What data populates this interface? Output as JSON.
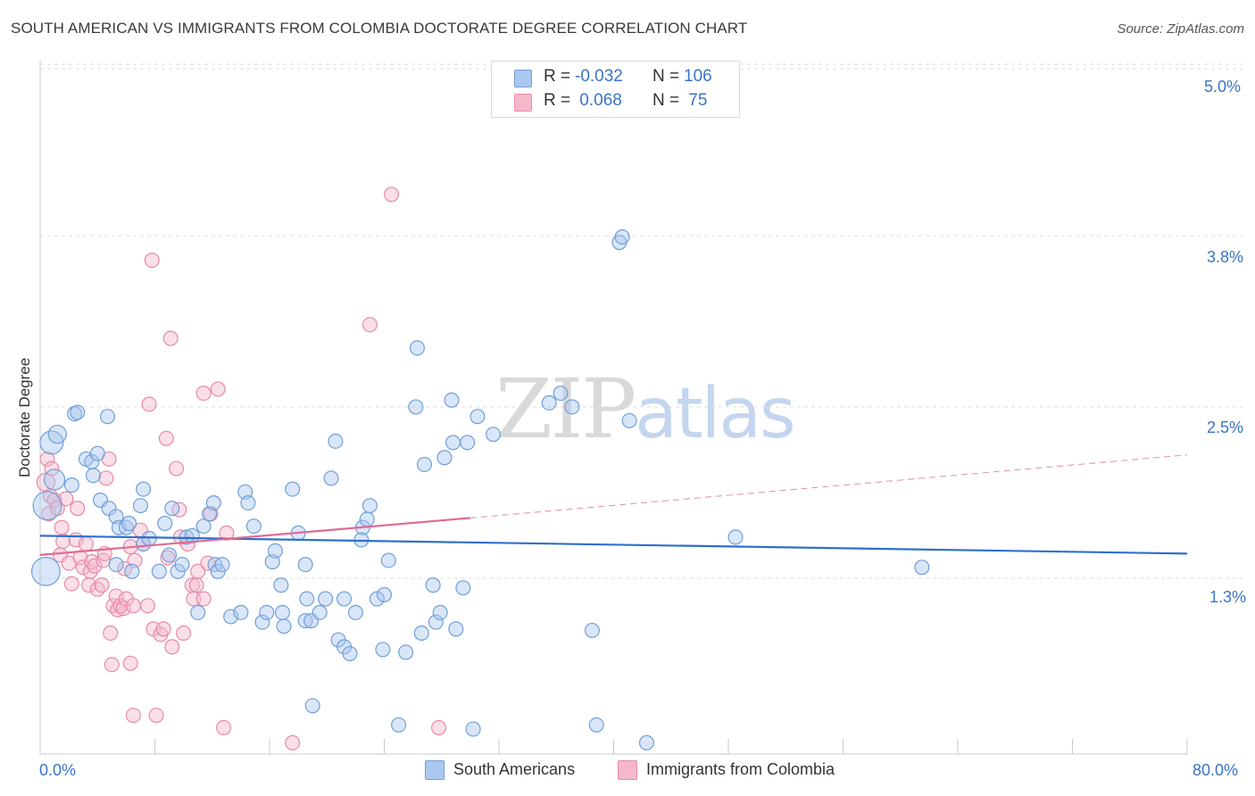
{
  "title": "SOUTH AMERICAN VS IMMIGRANTS FROM COLOMBIA DOCTORATE DEGREE CORRELATION CHART",
  "source": "Source: ZipAtlas.com",
  "watermark": "ZIPatlas",
  "legend_top": {
    "rows": [
      {
        "r_label": "R =",
        "r_value": "-0.032",
        "n_label": "N =",
        "n_value": "106",
        "color": "#aac8f0"
      },
      {
        "r_label": "R =",
        "r_value": " 0.068",
        "n_label": "N =",
        "n_value": " 75",
        "color": "#f5b8cb"
      }
    ]
  },
  "colors": {
    "blue_fill": "#aac8f0",
    "blue_stroke": "#6f9fd8",
    "blue_line": "#2f6fcc",
    "pink_fill": "#f5b8cb",
    "pink_stroke": "#e88aa8",
    "pink_line": "#e06a93",
    "grid": "#dcdcdc",
    "axis_text": "#3a73c6"
  },
  "chart_data": {
    "type": "scatter",
    "title": "SOUTH AMERICAN VS IMMIGRANTS FROM COLOMBIA DOCTORATE DEGREE CORRELATION CHART",
    "xlabel": "",
    "ylabel": "Doctorate Degree",
    "xlim": [
      0,
      80
    ],
    "ylim": [
      0,
      5.0
    ],
    "x_tick_labels": [
      "0.0%",
      "80.0%"
    ],
    "y_tick_labels": [
      "1.3%",
      "2.5%",
      "3.8%",
      "5.0%"
    ],
    "y_ticks": [
      1.25,
      2.5,
      3.75,
      5.0
    ],
    "grid": true,
    "legend_placement": "bottom",
    "series": [
      {
        "name": "South Americans",
        "r": -0.032,
        "n": 106,
        "trend": {
          "x": [
            0,
            80
          ],
          "y": [
            1.56,
            1.43
          ]
        },
        "points": [
          [
            0.4,
            1.3,
            22
          ],
          [
            0.8,
            2.24,
            18
          ],
          [
            1.2,
            2.3,
            14
          ],
          [
            1.0,
            1.97,
            16
          ],
          [
            0.5,
            1.78,
            22
          ],
          [
            2.2,
            1.93,
            11
          ],
          [
            2.4,
            2.45,
            11
          ],
          [
            2.6,
            2.46,
            11
          ],
          [
            3.2,
            2.12,
            11
          ],
          [
            3.6,
            2.1,
            11
          ],
          [
            4.0,
            2.16,
            11
          ],
          [
            3.7,
            2.0,
            11
          ],
          [
            4.7,
            2.43,
            11
          ],
          [
            4.2,
            1.82,
            11
          ],
          [
            4.8,
            1.76,
            11
          ],
          [
            5.3,
            1.7,
            11
          ],
          [
            5.5,
            1.62,
            11
          ],
          [
            6.0,
            1.62,
            11
          ],
          [
            5.3,
            1.35,
            11
          ],
          [
            6.4,
            1.3,
            11
          ],
          [
            6.2,
            1.65,
            11
          ],
          [
            7.2,
            1.5,
            11
          ],
          [
            7.2,
            1.9,
            11
          ],
          [
            7.0,
            1.78,
            11
          ],
          [
            7.6,
            1.54,
            11
          ],
          [
            8.3,
            1.3,
            11
          ],
          [
            8.7,
            1.65,
            11
          ],
          [
            9.0,
            1.42,
            11
          ],
          [
            9.2,
            1.76,
            11
          ],
          [
            9.6,
            1.3,
            11
          ],
          [
            9.9,
            1.35,
            11
          ],
          [
            10.2,
            1.55,
            11
          ],
          [
            10.6,
            1.56,
            11
          ],
          [
            11.0,
            1.0,
            11
          ],
          [
            11.4,
            1.63,
            11
          ],
          [
            11.8,
            1.72,
            11
          ],
          [
            12.1,
            1.8,
            11
          ],
          [
            12.2,
            1.35,
            11
          ],
          [
            12.4,
            1.3,
            11
          ],
          [
            12.7,
            1.35,
            11
          ],
          [
            13.3,
            0.97,
            11
          ],
          [
            14.0,
            1.0,
            11
          ],
          [
            14.3,
            1.88,
            11
          ],
          [
            14.5,
            1.8,
            11
          ],
          [
            14.9,
            1.63,
            11
          ],
          [
            15.5,
            0.93,
            11
          ],
          [
            15.8,
            1.0,
            11
          ],
          [
            16.2,
            1.37,
            11
          ],
          [
            16.4,
            1.45,
            11
          ],
          [
            16.8,
            1.2,
            11
          ],
          [
            16.9,
            1.0,
            11
          ],
          [
            17.0,
            0.9,
            11
          ],
          [
            17.6,
            1.9,
            11
          ],
          [
            18.0,
            1.58,
            11
          ],
          [
            18.5,
            0.94,
            11
          ],
          [
            18.6,
            1.1,
            11
          ],
          [
            18.5,
            1.35,
            11
          ],
          [
            18.9,
            0.94,
            11
          ],
          [
            19.0,
            0.32,
            11
          ],
          [
            19.5,
            1.0,
            11
          ],
          [
            19.9,
            1.1,
            11
          ],
          [
            20.3,
            1.98,
            11
          ],
          [
            20.6,
            2.25,
            11
          ],
          [
            20.8,
            0.8,
            11
          ],
          [
            21.2,
            1.1,
            11
          ],
          [
            21.2,
            0.75,
            11
          ],
          [
            21.6,
            0.7,
            11
          ],
          [
            22.0,
            1.0,
            11
          ],
          [
            22.5,
            1.62,
            11
          ],
          [
            22.4,
            1.53,
            11
          ],
          [
            22.8,
            1.68,
            11
          ],
          [
            23.0,
            1.78,
            11
          ],
          [
            23.5,
            1.1,
            11
          ],
          [
            23.9,
            0.73,
            11
          ],
          [
            24.0,
            1.13,
            11
          ],
          [
            24.3,
            1.38,
            11
          ],
          [
            25.0,
            0.18,
            11
          ],
          [
            25.5,
            0.71,
            11
          ],
          [
            26.2,
            2.5,
            11
          ],
          [
            26.3,
            2.93,
            11
          ],
          [
            26.8,
            2.08,
            11
          ],
          [
            26.6,
            0.85,
            11
          ],
          [
            27.4,
            1.2,
            11
          ],
          [
            27.6,
            0.93,
            11
          ],
          [
            27.9,
            1.0,
            11
          ],
          [
            28.2,
            2.13,
            11
          ],
          [
            28.7,
            2.55,
            11
          ],
          [
            28.8,
            2.24,
            11
          ],
          [
            29.0,
            0.88,
            11
          ],
          [
            29.5,
            1.18,
            11
          ],
          [
            29.8,
            2.24,
            11
          ],
          [
            30.5,
            2.43,
            11
          ],
          [
            30.2,
            0.15,
            11
          ],
          [
            31.6,
            2.3,
            11
          ],
          [
            35.5,
            2.53,
            11
          ],
          [
            36.3,
            2.6,
            11
          ],
          [
            37.1,
            2.5,
            11
          ],
          [
            38.5,
            0.87,
            11
          ],
          [
            38.8,
            0.18,
            11
          ],
          [
            40.4,
            3.7,
            11
          ],
          [
            40.6,
            3.74,
            11
          ],
          [
            41.1,
            2.4,
            11
          ],
          [
            42.3,
            0.05,
            11
          ],
          [
            48.5,
            1.55,
            11
          ],
          [
            61.5,
            1.33,
            11
          ]
        ]
      },
      {
        "name": "Immigrants from Colombia",
        "r": 0.068,
        "n": 75,
        "trend": {
          "x": [
            0,
            30
          ],
          "y": [
            1.42,
            1.69
          ],
          "dashed_extension": {
            "x": [
              30,
              80
            ],
            "y": [
              1.69,
              2.15
            ]
          }
        },
        "points": [
          [
            0.4,
            1.95,
            14
          ],
          [
            0.5,
            2.12,
            11
          ],
          [
            0.6,
            1.72,
            11
          ],
          [
            0.7,
            1.85,
            11
          ],
          [
            0.8,
            2.05,
            11
          ],
          [
            1.0,
            1.82,
            11
          ],
          [
            1.2,
            1.76,
            11
          ],
          [
            1.4,
            1.42,
            11
          ],
          [
            1.5,
            1.62,
            11
          ],
          [
            1.6,
            1.52,
            11
          ],
          [
            1.8,
            1.83,
            11
          ],
          [
            2.0,
            1.36,
            11
          ],
          [
            2.2,
            1.21,
            11
          ],
          [
            2.5,
            1.53,
            11
          ],
          [
            2.6,
            1.76,
            11
          ],
          [
            2.8,
            1.4,
            11
          ],
          [
            3.0,
            1.33,
            11
          ],
          [
            3.2,
            1.5,
            11
          ],
          [
            3.4,
            1.2,
            11
          ],
          [
            3.5,
            1.3,
            11
          ],
          [
            3.6,
            1.37,
            11
          ],
          [
            3.8,
            1.34,
            11
          ],
          [
            4.0,
            1.17,
            11
          ],
          [
            4.3,
            1.2,
            11
          ],
          [
            4.4,
            1.38,
            11
          ],
          [
            4.5,
            1.43,
            11
          ],
          [
            4.6,
            1.98,
            11
          ],
          [
            4.8,
            2.12,
            11
          ],
          [
            4.9,
            0.85,
            11
          ],
          [
            5.0,
            0.62,
            11
          ],
          [
            5.1,
            1.05,
            11
          ],
          [
            5.3,
            1.12,
            11
          ],
          [
            5.4,
            1.02,
            11
          ],
          [
            5.6,
            1.05,
            11
          ],
          [
            5.8,
            1.03,
            11
          ],
          [
            5.9,
            1.32,
            11
          ],
          [
            6.0,
            1.1,
            11
          ],
          [
            6.3,
            1.48,
            11
          ],
          [
            6.5,
            1.05,
            11
          ],
          [
            6.6,
            1.38,
            11
          ],
          [
            6.3,
            0.63,
            11
          ],
          [
            6.5,
            0.25,
            11
          ],
          [
            7.0,
            1.6,
            11
          ],
          [
            7.2,
            1.5,
            11
          ],
          [
            7.5,
            1.05,
            11
          ],
          [
            7.6,
            2.52,
            11
          ],
          [
            7.8,
            3.57,
            11
          ],
          [
            7.9,
            0.88,
            11
          ],
          [
            8.1,
            0.25,
            11
          ],
          [
            8.4,
            0.84,
            11
          ],
          [
            8.6,
            0.88,
            11
          ],
          [
            8.8,
            2.27,
            11
          ],
          [
            8.9,
            1.4,
            11
          ],
          [
            9.1,
            3.0,
            11
          ],
          [
            9.2,
            0.75,
            11
          ],
          [
            9.5,
            2.05,
            11
          ],
          [
            9.7,
            1.75,
            11
          ],
          [
            9.8,
            1.55,
            11
          ],
          [
            10.0,
            0.85,
            11
          ],
          [
            10.3,
            1.5,
            11
          ],
          [
            10.6,
            1.2,
            11
          ],
          [
            10.7,
            1.1,
            11
          ],
          [
            10.9,
            1.2,
            11
          ],
          [
            11.0,
            1.3,
            11
          ],
          [
            11.4,
            1.1,
            11
          ],
          [
            11.4,
            2.6,
            11
          ],
          [
            11.7,
            1.36,
            11
          ],
          [
            11.9,
            1.72,
            11
          ],
          [
            12.4,
            2.63,
            11
          ],
          [
            12.8,
            0.16,
            11
          ],
          [
            13.0,
            1.58,
            11
          ],
          [
            17.6,
            0.05,
            11
          ],
          [
            23.0,
            3.1,
            11
          ],
          [
            24.5,
            4.05,
            11
          ],
          [
            27.8,
            0.16,
            11
          ]
        ]
      }
    ]
  },
  "x_axis": {
    "left_label": "0.0%",
    "right_label": "80.0%"
  },
  "y_axis_label": "Doctorate Degree",
  "bottom_legend": [
    {
      "label": "South Americans",
      "color": "#aac8f0"
    },
    {
      "label": "Immigrants from Colombia",
      "color": "#f5b8cb"
    }
  ]
}
